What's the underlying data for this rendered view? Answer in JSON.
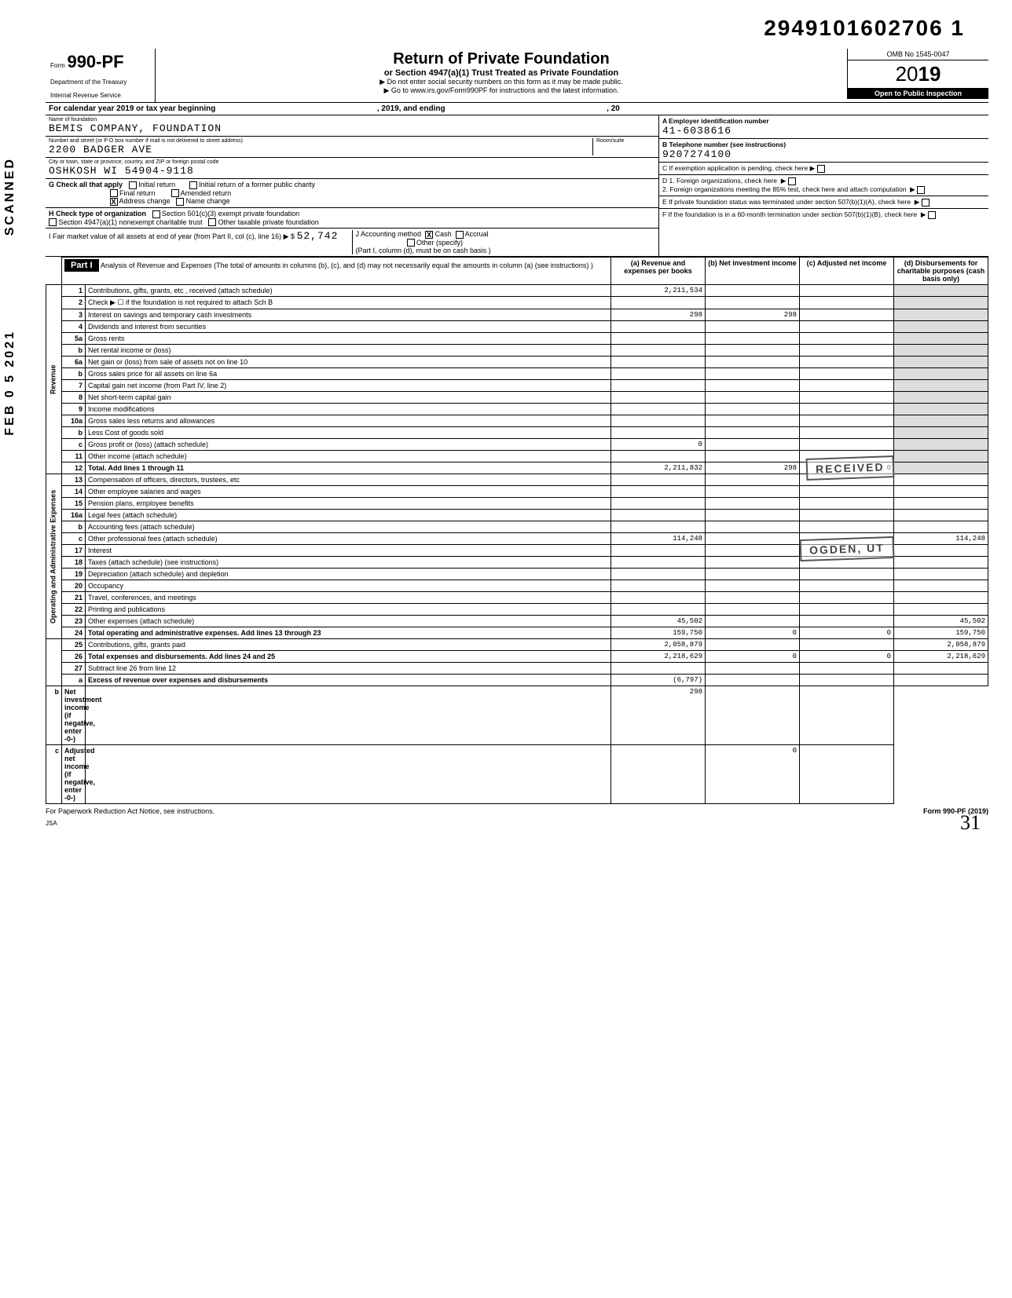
{
  "doc_id": "2949101602706 1",
  "form": {
    "label": "Form",
    "number": "990-PF",
    "dept": "Department of the Treasury",
    "irs": "Internal Revenue Service"
  },
  "title": "Return of Private Foundation",
  "subtitle": "or Section 4947(a)(1) Trust Treated as Private Foundation",
  "instr1": "▶ Do not enter social security numbers on this form as it may be made public.",
  "instr2": "▶ Go to www.irs.gov/Form990PF for instructions and the latest information.",
  "omb": "OMB No 1545-0047",
  "year_prefix": "20",
  "year_bold": "19",
  "open_inspect": "Open to Public Inspection",
  "cal_year": "For calendar year 2019 or tax year beginning",
  "cal_year_mid": ", 2019, and ending",
  "cal_year_end": ", 20",
  "foundation": {
    "name_label": "Name of foundation",
    "name": "BEMIS COMPANY, FOUNDATION",
    "addr_label": "Number and street (or P O box number if mail is not delivered to street address)",
    "room_label": "Room/suite",
    "addr": "2200 BADGER AVE",
    "city_label": "City or town, state or province, country, and ZIP or foreign postal code",
    "city": "OSHKOSH WI 54904-9118"
  },
  "ein_label": "A  Employer identification number",
  "ein": "41-6038616",
  "phone_label": "B  Telephone number (see instructions)",
  "phone": "9207274100",
  "c_label": "C  If exemption application is pending, check here ▶",
  "d1_label": "D  1. Foreign organizations, check here",
  "d2_label": "2. Foreign organizations meeting the 85% test, check here and attach computation",
  "e_label": "E  If private foundation status was terminated under section 507(b)(1)(A), check here",
  "f_label": "F  If the foundation is in a 60-month termination under section 507(b)(1)(B), check here",
  "g": {
    "label": "G   Check all that apply",
    "opts": [
      "Initial return",
      "Final return",
      "Address change",
      "Initial return of a former public charity",
      "Amended return",
      "Name change"
    ],
    "checked": "Address change"
  },
  "h": {
    "label": "H   Check type of organization",
    "opts": [
      "Section 501(c)(3) exempt private foundation",
      "Section 4947(a)(1) nonexempt charitable trust",
      "Other taxable private foundation"
    ]
  },
  "i": {
    "label": "I    Fair market value of all assets at end of year  (from Part II, col (c), line 16) ▶  $",
    "val": "52,742",
    "j_label": "J   Accounting method",
    "cash": "Cash",
    "accrual": "Accrual",
    "other": "Other (specify)",
    "note": "(Part I, column (d), must be on cash basis )"
  },
  "part1": {
    "hdr": "Part I",
    "title": "Analysis of Revenue and Expenses (The total of amounts in columns (b), (c), and (d) may not necessarily equal the amounts in column (a) (see instructions) )",
    "cols": [
      "(a) Revenue and expenses per books",
      "(b) Net investment income",
      "(c) Adjusted net income",
      "(d) Disbursements for charitable purposes (cash basis only)"
    ]
  },
  "revenue_label": "Revenue",
  "expenses_label": "Operating and Administrative Expenses",
  "rows": [
    {
      "n": "1",
      "d": "Contributions, gifts, grants, etc , received (attach schedule)",
      "a": "2,211,534",
      "b": "",
      "c": "",
      "dd": ""
    },
    {
      "n": "2",
      "d": "Check ▶ ☐ if the foundation is not required to attach Sch B",
      "a": "",
      "b": "",
      "c": "",
      "dd": ""
    },
    {
      "n": "3",
      "d": "Interest on savings and temporary cash investments",
      "a": "298",
      "b": "298",
      "c": "",
      "dd": ""
    },
    {
      "n": "4",
      "d": "Dividends and interest from securities",
      "a": "",
      "b": "",
      "c": "",
      "dd": ""
    },
    {
      "n": "5a",
      "d": "Gross rents",
      "a": "",
      "b": "",
      "c": "",
      "dd": ""
    },
    {
      "n": "b",
      "d": "Net rental income or (loss)",
      "a": "",
      "b": "",
      "c": "",
      "dd": ""
    },
    {
      "n": "6a",
      "d": "Net gain or (loss) from sale of assets not on line 10",
      "a": "",
      "b": "",
      "c": "",
      "dd": ""
    },
    {
      "n": "b",
      "d": "Gross sales price for all assets on line 6a",
      "a": "",
      "b": "",
      "c": "",
      "dd": ""
    },
    {
      "n": "7",
      "d": "Capital gain net income (from Part IV, line 2)",
      "a": "",
      "b": "",
      "c": "",
      "dd": ""
    },
    {
      "n": "8",
      "d": "Net short-term capital gain",
      "a": "",
      "b": "",
      "c": "",
      "dd": ""
    },
    {
      "n": "9",
      "d": "Income modifications",
      "a": "",
      "b": "",
      "c": "",
      "dd": ""
    },
    {
      "n": "10a",
      "d": "Gross sales less returns and allowances",
      "a": "",
      "b": "",
      "c": "",
      "dd": ""
    },
    {
      "n": "b",
      "d": "Less Cost of goods sold",
      "a": "",
      "b": "",
      "c": "",
      "dd": ""
    },
    {
      "n": "c",
      "d": "Gross profit or (loss) (attach schedule)",
      "a": "0",
      "b": "",
      "c": "",
      "dd": ""
    },
    {
      "n": "11",
      "d": "Other income (attach schedule)",
      "a": "",
      "b": "",
      "c": "",
      "dd": ""
    },
    {
      "n": "12",
      "d": "Total. Add lines 1 through 11",
      "a": "2,211,832",
      "b": "298",
      "c": "0",
      "dd": "",
      "bold": true
    },
    {
      "n": "13",
      "d": "Compensation of officers, directors, trustees, etc",
      "a": "",
      "b": "",
      "c": "",
      "dd": ""
    },
    {
      "n": "14",
      "d": "Other employee salaries and wages",
      "a": "",
      "b": "",
      "c": "",
      "dd": ""
    },
    {
      "n": "15",
      "d": "Pension plans, employee benefits",
      "a": "",
      "b": "",
      "c": "",
      "dd": ""
    },
    {
      "n": "16a",
      "d": "Legal fees (attach schedule)",
      "a": "",
      "b": "",
      "c": "",
      "dd": ""
    },
    {
      "n": "b",
      "d": "Accounting fees (attach schedule)",
      "a": "",
      "b": "",
      "c": "",
      "dd": ""
    },
    {
      "n": "c",
      "d": "Other professional fees (attach schedule)",
      "a": "114,248",
      "b": "",
      "c": "",
      "dd": "114,248"
    },
    {
      "n": "17",
      "d": "Interest",
      "a": "",
      "b": "",
      "c": "",
      "dd": ""
    },
    {
      "n": "18",
      "d": "Taxes (attach schedule) (see instructions)",
      "a": "",
      "b": "",
      "c": "",
      "dd": ""
    },
    {
      "n": "19",
      "d": "Depreciation (attach schedule) and depletion",
      "a": "",
      "b": "",
      "c": "",
      "dd": ""
    },
    {
      "n": "20",
      "d": "Occupancy",
      "a": "",
      "b": "",
      "c": "",
      "dd": ""
    },
    {
      "n": "21",
      "d": "Travel, conferences, and meetings",
      "a": "",
      "b": "",
      "c": "",
      "dd": ""
    },
    {
      "n": "22",
      "d": "Printing and publications",
      "a": "",
      "b": "",
      "c": "",
      "dd": ""
    },
    {
      "n": "23",
      "d": "Other expenses (attach schedule)",
      "a": "45,502",
      "b": "",
      "c": "",
      "dd": "45,502"
    },
    {
      "n": "24",
      "d": "Total operating and administrative expenses. Add lines 13 through 23",
      "a": "159,750",
      "b": "0",
      "c": "0",
      "dd": "159,750",
      "bold": true
    },
    {
      "n": "25",
      "d": "Contributions, gifts, grants paid",
      "a": "2,058,879",
      "b": "",
      "c": "",
      "dd": "2,058,879"
    },
    {
      "n": "26",
      "d": "Total expenses and disbursements. Add lines 24 and 25",
      "a": "2,218,629",
      "b": "0",
      "c": "0",
      "dd": "2,218,629",
      "bold": true
    },
    {
      "n": "27",
      "d": "Subtract line 26 from line 12",
      "a": "",
      "b": "",
      "c": "",
      "dd": ""
    },
    {
      "n": "a",
      "d": "Excess of revenue over expenses and disbursements",
      "a": "(6,797)",
      "b": "",
      "c": "",
      "dd": "",
      "bold": true
    },
    {
      "n": "b",
      "d": "Net investment income (if negative, enter -0-)",
      "a": "",
      "b": "298",
      "c": "",
      "dd": "",
      "bold": true
    },
    {
      "n": "c",
      "d": "Adjusted net income (if negative, enter -0-)",
      "a": "",
      "b": "",
      "c": "0",
      "dd": "",
      "bold": true
    }
  ],
  "footer_left": "For Paperwork Reduction Act Notice, see instructions.",
  "footer_right": "Form 990-PF (2019)",
  "jsa": "JSA",
  "scanned": "SCANNED",
  "scan_date": "FEB 0 5 2021",
  "stamp_recv": "RECEIVED",
  "stamp_ogden": "OGDEN, UT",
  "page_hand": "31"
}
